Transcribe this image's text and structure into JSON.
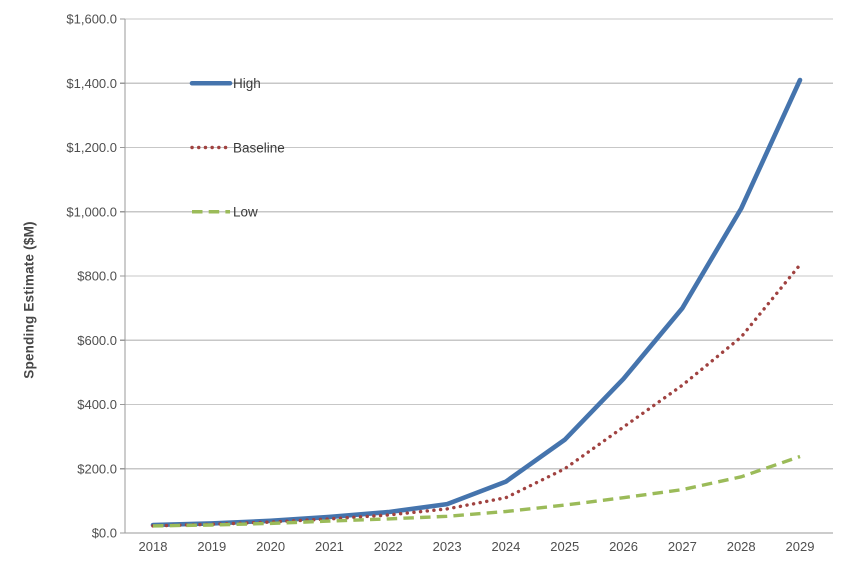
{
  "chart_data": {
    "type": "line",
    "title": "",
    "xlabel": "",
    "ylabel": "Spending Estimate ($M)",
    "categories": [
      "2018",
      "2019",
      "2020",
      "2021",
      "2022",
      "2023",
      "2024",
      "2025",
      "2026",
      "2027",
      "2028",
      "2029"
    ],
    "ylim": [
      0,
      1600
    ],
    "y_tick_values": [
      0,
      200,
      400,
      600,
      800,
      1000,
      1200,
      1400,
      1600
    ],
    "y_tick_labels": [
      "$0.0",
      "$200.0",
      "$400.0",
      "$600.0",
      "$800.0",
      "$1,000.0",
      "$1,200.0",
      "$1,400.0",
      "$1,600.0"
    ],
    "grid": true,
    "legend_position": "upper-left-inside",
    "series": [
      {
        "name": "High",
        "line_style": "solid",
        "color": "#4574ad",
        "values": [
          25,
          30,
          38,
          50,
          65,
          90,
          160,
          290,
          480,
          700,
          1010,
          1410
        ]
      },
      {
        "name": "Baseline",
        "line_style": "dotted",
        "color": "#a04240",
        "values": [
          22,
          27,
          34,
          44,
          56,
          75,
          110,
          200,
          330,
          460,
          610,
          835
        ]
      },
      {
        "name": "Low",
        "line_style": "dashed",
        "color": "#9bbb59",
        "values": [
          22,
          25,
          30,
          37,
          44,
          52,
          67,
          87,
          110,
          135,
          175,
          238
        ]
      }
    ]
  },
  "colors": {
    "background": "#ffffff",
    "grid": "#c7c7c7",
    "axis": "#9a9a9a",
    "tick_text": "#4f4f4f",
    "legend_text": "#3a3a3a",
    "axis_title_text": "#474747"
  }
}
